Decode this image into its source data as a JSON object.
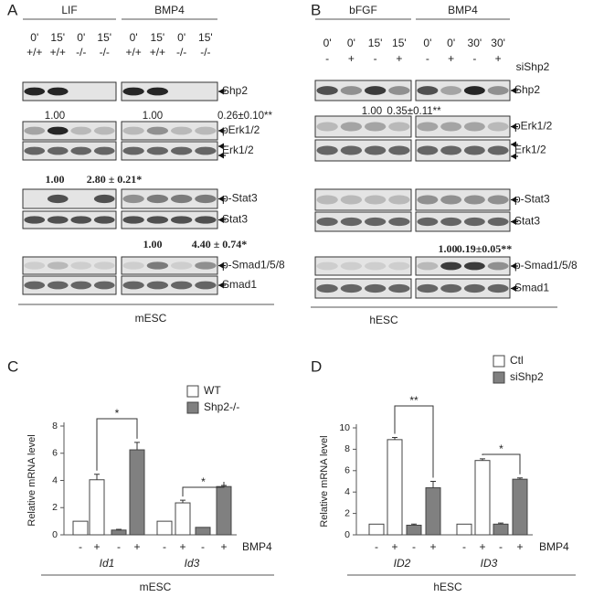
{
  "panels": [
    {
      "label": "A",
      "groups": [
        {
          "name": "LIF",
          "times": [
            "0'",
            "15'",
            "0'",
            "15'"
          ],
          "conditions": [
            "+/+",
            "+/+",
            "-/-",
            "-/-"
          ]
        },
        {
          "name": "BMP4",
          "times": [
            "0'",
            "15'",
            "0'",
            "15'"
          ],
          "conditions": [
            "+/+",
            "+/+",
            "-/-",
            "-/-"
          ]
        }
      ],
      "rows": [
        "Shp2",
        "pErk1/2",
        "Erk1/2",
        "p-Stat3",
        "Stat3",
        "p-Smad1/5/8",
        "Smad1"
      ],
      "quantification": [
        "1.00",
        "1.00",
        "0.26±0.10**",
        "1.00",
        "2.80 ± 0.21*",
        "1.00",
        "4.40 ± 0.74*"
      ],
      "cell_type": "mESC"
    },
    {
      "label": "B",
      "groups": [
        {
          "name": "bFGF",
          "times": [
            "0'",
            "0'",
            "15'",
            "15'"
          ],
          "conditions": [
            "-",
            "+",
            "-",
            "+"
          ]
        },
        {
          "name": "BMP4",
          "times": [
            "0'",
            "0'",
            "30'",
            "30'"
          ],
          "conditions": [
            "-",
            "+",
            "-",
            "+"
          ]
        }
      ],
      "condition_label": "siShp2",
      "rows": [
        "Shp2",
        "pErk1/2",
        "Erk1/2",
        "p-Stat3",
        "Stat3",
        "p-Smad1/5/8",
        "Smad1"
      ],
      "quantification": [
        "1.00",
        "0.35±0.11**",
        "1.00",
        "0.19±0.05**"
      ],
      "cell_type": "hESC"
    }
  ],
  "chart_data": [
    {
      "type": "bar",
      "panel_label": "C",
      "y_label": "Relative mRNA level",
      "ylim": [
        0,
        8
      ],
      "yticks": [
        0,
        2,
        4,
        6,
        8
      ],
      "categories": [
        "-",
        "+",
        "-",
        "+",
        "-",
        "+",
        "-",
        "+"
      ],
      "groups": [
        "Id1",
        "Id3"
      ],
      "x_label": "BMP4",
      "cell_type": "mESC",
      "series": [
        {
          "name": "WT",
          "color": "#ffffff",
          "values": [
            1.0,
            4.05,
            null,
            null,
            1.0,
            2.35,
            null,
            null
          ],
          "errors": [
            null,
            0.4,
            null,
            null,
            null,
            0.2,
            null,
            null
          ]
        },
        {
          "name": "Shp2-/-",
          "color": "#808080",
          "values": [
            null,
            null,
            0.35,
            6.25,
            null,
            null,
            0.55,
            3.55
          ],
          "errors": [
            null,
            null,
            0.05,
            0.55,
            null,
            null,
            null,
            0.08
          ]
        }
      ],
      "annotations": [
        "*",
        "*"
      ]
    },
    {
      "type": "bar",
      "panel_label": "D",
      "y_label": "Relative mRNA level",
      "ylim": [
        0,
        10
      ],
      "yticks": [
        0,
        2,
        4,
        6,
        8,
        10
      ],
      "categories": [
        "-",
        "+",
        "-",
        "+",
        "-",
        "+",
        "-",
        "+"
      ],
      "groups": [
        "ID2",
        "ID3"
      ],
      "x_label": "BMP4",
      "cell_type": "hESC",
      "series": [
        {
          "name": "Ctl",
          "color": "#ffffff",
          "values": [
            1.0,
            8.9,
            null,
            null,
            1.0,
            6.95,
            null,
            null
          ],
          "errors": [
            null,
            0.2,
            null,
            null,
            null,
            0.15,
            null,
            null
          ]
        },
        {
          "name": "siShp2",
          "color": "#808080",
          "values": [
            null,
            null,
            0.9,
            4.4,
            null,
            null,
            1.0,
            5.2
          ],
          "errors": [
            null,
            null,
            0.1,
            0.6,
            null,
            null,
            0.1,
            0.12
          ]
        }
      ],
      "annotations": [
        "**",
        "*"
      ]
    }
  ]
}
